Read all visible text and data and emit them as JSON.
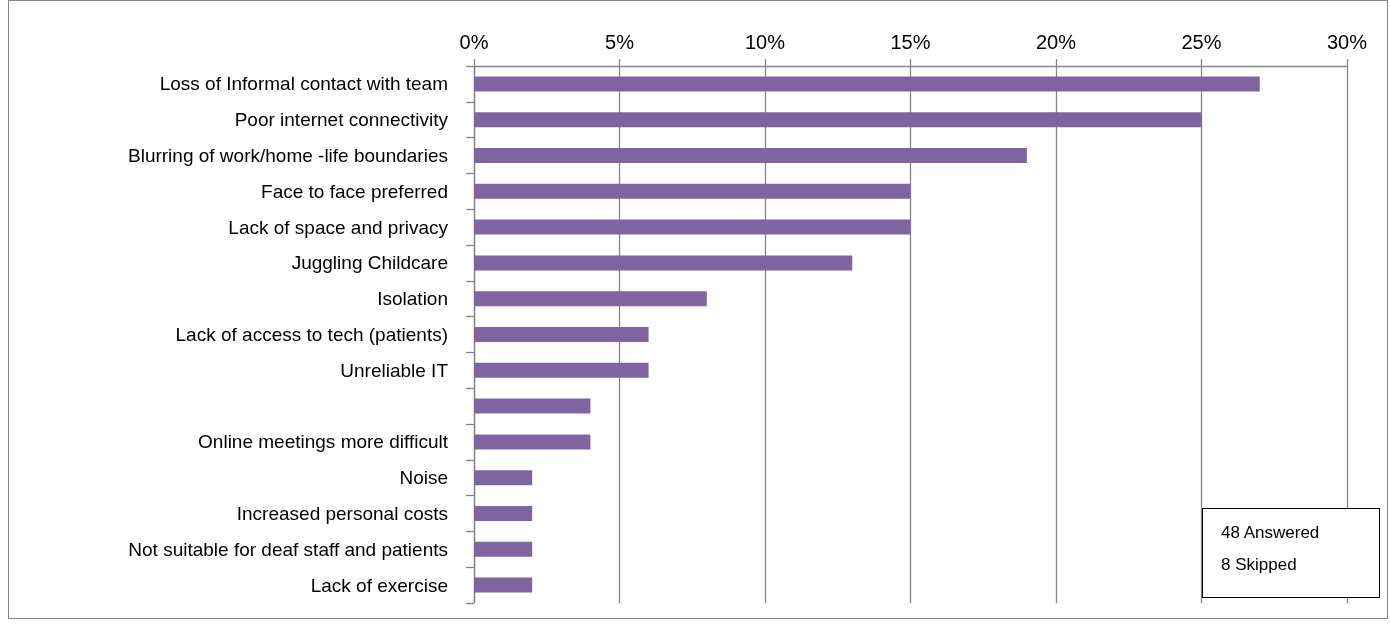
{
  "chart_data": {
    "type": "bar",
    "orientation": "horizontal",
    "categories": [
      "Loss of Informal contact with team",
      "Poor internet connectivity",
      "Blurring of work/home -life boundaries",
      "Face to face preferred",
      "Lack of space and privacy",
      "Juggling Childcare",
      "Isolation",
      "Lack of access to tech (patients)",
      "Unreliable IT",
      null,
      "Online meetings more difficult",
      "Noise",
      "Increased personal costs",
      "Not suitable for deaf staff and patients",
      "Lack of exercise"
    ],
    "values": [
      27,
      25,
      19,
      15,
      15,
      13,
      8,
      6,
      6,
      4,
      4,
      2,
      2,
      2,
      2
    ],
    "color": "#8064a2",
    "xlim": [
      0,
      30
    ],
    "xticks": [
      {
        "value": 0,
        "label": "0%"
      },
      {
        "value": 5,
        "label": "5%"
      },
      {
        "value": 10,
        "label": "10%"
      },
      {
        "value": 15,
        "label": "15%"
      },
      {
        "value": 20,
        "label": "20%"
      },
      {
        "value": 25,
        "label": "25%"
      },
      {
        "value": 30,
        "label": "30%"
      }
    ],
    "grid": "x",
    "annotations": [
      "48 Answered",
      "8 Skipped"
    ]
  }
}
